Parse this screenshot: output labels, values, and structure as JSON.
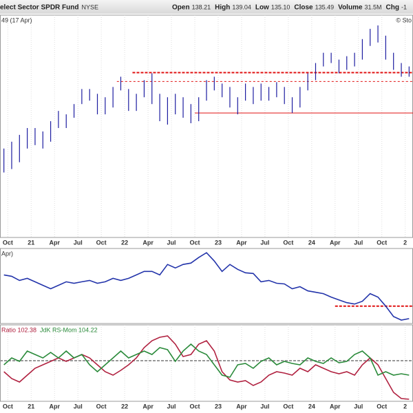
{
  "header": {
    "title": "elect Sector SPDR Fund",
    "exchange": "NYSE",
    "quote": [
      {
        "label": "Open",
        "value": "138.21"
      },
      {
        "label": "High",
        "value": "139.04"
      },
      {
        "label": "Low",
        "value": "135.10"
      },
      {
        "label": "Close",
        "value": "135.49"
      },
      {
        "label": "Volume",
        "value": "31.5M"
      },
      {
        "label": "Chg",
        "value": "-1"
      }
    ]
  },
  "chart_data": [
    {
      "type": "ohlc",
      "label": "49 (17 Apr)",
      "credit": "© Sto",
      "color": "#1c1ca0",
      "x": [
        "2020-09",
        "2020-10",
        "2020-11",
        "2020-12",
        "2021-01",
        "2021-02",
        "2021-03",
        "2021-04",
        "2021-05",
        "2021-06",
        "2021-07",
        "2021-08",
        "2021-09",
        "2021-10",
        "2021-11",
        "2021-12",
        "2022-01",
        "2022-02",
        "2022-03",
        "2022-04",
        "2022-05",
        "2022-06",
        "2022-07",
        "2022-08",
        "2022-09",
        "2022-10",
        "2022-11",
        "2022-12",
        "2023-01",
        "2023-02",
        "2023-03",
        "2023-04",
        "2023-05",
        "2023-06",
        "2023-07",
        "2023-08",
        "2023-09",
        "2023-10",
        "2023-11",
        "2023-12",
        "2024-01",
        "2024-02",
        "2024-03",
        "2024-04",
        "2024-05",
        "2024-06",
        "2024-07",
        "2024-08",
        "2024-09",
        "2024-10",
        "2024-11",
        "2024-12",
        "2025-01"
      ],
      "high": [
        87,
        91,
        95,
        99,
        99,
        97,
        103,
        109,
        107,
        113,
        121.8,
        121.8,
        119,
        117,
        123,
        129,
        121.8,
        119,
        127,
        131,
        119,
        117,
        119,
        117,
        113,
        117,
        127,
        129,
        125,
        123,
        117,
        125,
        123,
        125,
        123,
        125.8,
        123,
        117,
        123,
        131,
        137,
        143,
        143,
        139,
        141,
        143,
        151,
        157,
        159,
        153,
        143,
        137,
        135
      ],
      "low": [
        73,
        75,
        79,
        87,
        89,
        87,
        91,
        99,
        99,
        105,
        113,
        115,
        107,
        107,
        111,
        121,
        109,
        109,
        117,
        113,
        103,
        101,
        107,
        105,
        101.8,
        103,
        115,
        121,
        117,
        111,
        107,
        115,
        113,
        115,
        115,
        117,
        113,
        107.8,
        111,
        121,
        127,
        135,
        137,
        131,
        133,
        135,
        139,
        147,
        149,
        139,
        133,
        129,
        129
      ],
      "hlines": [
        {
          "value": 131.4,
          "from": "2022-02",
          "style": "dashed",
          "color": "#e01010"
        },
        {
          "value": 126.2,
          "from": "2021-12",
          "style": "thin-dashed",
          "color": "#e01010"
        },
        {
          "value": 107.8,
          "from": "2022-10",
          "style": "solid",
          "color": "#e01010"
        }
      ],
      "xlim": [
        "2020-09",
        "2025-02"
      ],
      "ylim": [
        35,
        165
      ],
      "grid": true,
      "xticks": [
        {
          "value": "2020-10",
          "label": "Oct"
        },
        {
          "value": "2021-01",
          "label": "21"
        },
        {
          "value": "2021-04",
          "label": "Apr"
        },
        {
          "value": "2021-07",
          "label": "Jul"
        },
        {
          "value": "2021-10",
          "label": "Oct"
        },
        {
          "value": "2022-01",
          "label": "22"
        },
        {
          "value": "2022-04",
          "label": "Apr"
        },
        {
          "value": "2022-07",
          "label": "Jul"
        },
        {
          "value": "2022-10",
          "label": "Oct"
        },
        {
          "value": "2023-01",
          "label": "23"
        },
        {
          "value": "2023-04",
          "label": "Apr"
        },
        {
          "value": "2023-07",
          "label": "Jul"
        },
        {
          "value": "2023-10",
          "label": "Oct"
        },
        {
          "value": "2024-01",
          "label": "24"
        },
        {
          "value": "2024-04",
          "label": "Apr"
        },
        {
          "value": "2024-07",
          "label": "Jul"
        },
        {
          "value": "2024-10",
          "label": "Oct"
        },
        {
          "value": "2025-01",
          "label": "2"
        }
      ]
    },
    {
      "type": "line",
      "label": "Apr)",
      "x": [
        "2020-09",
        "2020-10",
        "2020-11",
        "2020-12",
        "2021-01",
        "2021-02",
        "2021-03",
        "2021-04",
        "2021-05",
        "2021-06",
        "2021-07",
        "2021-08",
        "2021-09",
        "2021-10",
        "2021-11",
        "2021-12",
        "2022-01",
        "2022-02",
        "2022-03",
        "2022-04",
        "2022-05",
        "2022-06",
        "2022-07",
        "2022-08",
        "2022-09",
        "2022-10",
        "2022-11",
        "2022-12",
        "2023-01",
        "2023-02",
        "2023-03",
        "2023-04",
        "2023-05",
        "2023-06",
        "2023-07",
        "2023-08",
        "2023-09",
        "2023-10",
        "2023-11",
        "2023-12",
        "2024-01",
        "2024-02",
        "2024-03",
        "2024-04",
        "2024-05",
        "2024-06",
        "2024-07",
        "2024-08",
        "2024-09",
        "2024-10",
        "2024-11",
        "2024-12",
        "2025-01"
      ],
      "series": [
        {
          "color": "#2233aa",
          "values": [
            70,
            68,
            62,
            65,
            60,
            55,
            50,
            55,
            60,
            58,
            60,
            62,
            58,
            60,
            65,
            62,
            65,
            70,
            75,
            75,
            70,
            85,
            80,
            85,
            87,
            95,
            102,
            90,
            75,
            85,
            78,
            73,
            72,
            60,
            62,
            58,
            57,
            50,
            53,
            47,
            45,
            43,
            38,
            34,
            30,
            28,
            32,
            43,
            38,
            25,
            10,
            5,
            7
          ]
        }
      ],
      "hlines": [
        {
          "value": 25,
          "from": "2024-04",
          "style": "dashed",
          "color": "#e01010"
        }
      ],
      "xlim": [
        "2020-09",
        "2025-02"
      ],
      "ylim": [
        0,
        108
      ]
    },
    {
      "type": "line",
      "x": [
        "2020-09",
        "2020-10",
        "2020-11",
        "2020-12",
        "2021-01",
        "2021-02",
        "2021-03",
        "2021-04",
        "2021-05",
        "2021-06",
        "2021-07",
        "2021-08",
        "2021-09",
        "2021-10",
        "2021-11",
        "2021-12",
        "2022-01",
        "2022-02",
        "2022-03",
        "2022-04",
        "2022-05",
        "2022-06",
        "2022-07",
        "2022-08",
        "2022-09",
        "2022-10",
        "2022-11",
        "2022-12",
        "2023-01",
        "2023-02",
        "2023-03",
        "2023-04",
        "2023-05",
        "2023-06",
        "2023-07",
        "2023-08",
        "2023-09",
        "2023-10",
        "2023-11",
        "2023-12",
        "2024-01",
        "2024-02",
        "2024-03",
        "2024-04",
        "2024-05",
        "2024-06",
        "2024-07",
        "2024-08",
        "2024-09",
        "2024-10",
        "2024-11",
        "2024-12",
        "2025-01"
      ],
      "series": [
        {
          "name": "Ratio 102.38",
          "color": "#b0203f",
          "values": [
            98.4,
            97.4,
            96.9,
            97.9,
            98.9,
            99.4,
            99.9,
            100.4,
            99.9,
            100.4,
            100.9,
            100.4,
            99.4,
            98.4,
            97.9,
            98.6,
            99.4,
            100.4,
            101.9,
            102.9,
            103.4,
            103.6,
            102.4,
            100.6,
            100.9,
            102.4,
            102.9,
            101.4,
            98.4,
            97.2,
            96.9,
            97.1,
            96.4,
            96.9,
            97.9,
            98.4,
            98.2,
            97.9,
            98.9,
            98.4,
            99.4,
            98.9,
            98.4,
            98.1,
            98.4,
            97.9,
            99.4,
            100.4,
            99.4,
            97.4,
            95.4,
            94.5,
            94.4
          ]
        },
        {
          "name": "JdK RS-Mom 104.22",
          "color": "#2a8a3a",
          "values": [
            99.4,
            100.4,
            99.9,
            101.4,
            100.9,
            100.4,
            101.2,
            100.4,
            101.4,
            100.4,
            100.9,
            99.4,
            98.4,
            99.4,
            100.4,
            101.4,
            100.4,
            100.9,
            101.4,
            100.9,
            101.9,
            101.6,
            99.9,
            101.4,
            102.4,
            101.4,
            100.9,
            99.4,
            97.9,
            97.6,
            99.4,
            99.6,
            98.9,
            99.9,
            100.4,
            99.4,
            99.9,
            99.6,
            99.4,
            100.4,
            99.9,
            99.6,
            100.4,
            99.7,
            99.9,
            100.9,
            101.4,
            100.4,
            97.9,
            98.4,
            97.9,
            98.1,
            97.9
          ]
        }
      ],
      "hlines": [
        {
          "value": 100,
          "style": "dashed",
          "color": "#999999"
        }
      ],
      "xlim": [
        "2020-09",
        "2025-02"
      ],
      "ylim": [
        94.1,
        105.2
      ],
      "grid": true,
      "xticks": [
        {
          "value": "2020-10",
          "label": "Oct"
        },
        {
          "value": "2021-01",
          "label": "21"
        },
        {
          "value": "2021-04",
          "label": "Apr"
        },
        {
          "value": "2021-07",
          "label": "Jul"
        },
        {
          "value": "2021-10",
          "label": "Oct"
        },
        {
          "value": "2022-01",
          "label": "22"
        },
        {
          "value": "2022-04",
          "label": "Apr"
        },
        {
          "value": "2022-07",
          "label": "Jul"
        },
        {
          "value": "2022-10",
          "label": "Oct"
        },
        {
          "value": "2023-01",
          "label": "23"
        },
        {
          "value": "2023-04",
          "label": "Apr"
        },
        {
          "value": "2023-07",
          "label": "Jul"
        },
        {
          "value": "2023-10",
          "label": "Oct"
        },
        {
          "value": "2024-01",
          "label": "24"
        },
        {
          "value": "2024-04",
          "label": "Apr"
        },
        {
          "value": "2024-07",
          "label": "Jul"
        },
        {
          "value": "2024-10",
          "label": "Oct"
        },
        {
          "value": "2025-01",
          "label": "2"
        }
      ]
    }
  ]
}
